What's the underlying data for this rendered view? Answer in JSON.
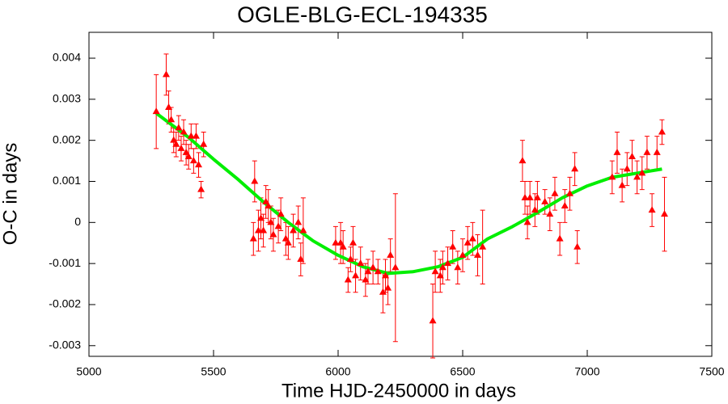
{
  "chart_data": {
    "type": "scatter",
    "title": "OGLE-BLG-ECL-194335",
    "x_label": "Time HJD-2450000 in days",
    "y_label": "O-C in days",
    "xlim": [
      5000,
      7500
    ],
    "xticks": [
      5000,
      5500,
      6000,
      6500,
      7000,
      7500
    ],
    "ylim": [
      -0.00326,
      0.00463
    ],
    "yticks": [
      -0.003,
      -0.002,
      -0.001,
      0,
      0.001,
      0.002,
      0.003,
      0.004
    ],
    "grid": false,
    "color": "#ff0000",
    "x": [
      5270,
      5310,
      5320,
      5330,
      5340,
      5350,
      5360,
      5370,
      5380,
      5390,
      5400,
      5410,
      5420,
      5430,
      5440,
      5450,
      5460,
      5660,
      5665,
      5680,
      5690,
      5700,
      5710,
      5720,
      5730,
      5740,
      5760,
      5770,
      5790,
      5800,
      5820,
      5840,
      5850,
      5860,
      5990,
      6010,
      6020,
      6040,
      6050,
      6060,
      6070,
      6090,
      6110,
      6120,
      6140,
      6160,
      6180,
      6190,
      6200,
      6210,
      6230,
      6380,
      6390,
      6410,
      6420,
      6440,
      6460,
      6480,
      6500,
      6520,
      6540,
      6560,
      6580,
      6740,
      6750,
      6760,
      6770,
      6790,
      6800,
      6830,
      6850,
      6870,
      6890,
      6910,
      6930,
      6950,
      6960,
      7100,
      7120,
      7140,
      7160,
      7180,
      7200,
      7220,
      7240,
      7260,
      7280,
      7300,
      7310
    ],
    "values": [
      0.0027,
      0.0036,
      0.0028,
      0.0025,
      0.002,
      0.0019,
      0.0023,
      0.0018,
      0.0022,
      0.0017,
      0.0016,
      0.0021,
      0.0015,
      0.0021,
      0.0014,
      0.0008,
      0.0019,
      -0.0004,
      0.001,
      -0.0002,
      0.0001,
      -0.0002,
      0.0005,
      0.0004,
      0,
      -0.0003,
      -0.0001,
      0.0002,
      -0.0004,
      -0.0005,
      -0.0002,
      0,
      -0.0009,
      -0.0002,
      -0.0005,
      -0.0005,
      -0.0006,
      -0.0014,
      -0.0009,
      -0.0005,
      -0.0013,
      -0.001,
      -0.0014,
      -0.0012,
      -0.0011,
      -0.0012,
      -0.0017,
      -0.0013,
      -0.0016,
      -0.0008,
      -0.0011,
      -0.0024,
      -0.0012,
      -0.0013,
      -0.0011,
      -0.001,
      -0.0006,
      -0.0011,
      -0.0008,
      -0.0005,
      -0.0004,
      -0.0008,
      -0.0006,
      0.0015,
      0.0006,
      0,
      0.0006,
      0.0003,
      0.0006,
      0.0005,
      0.0002,
      0.0007,
      -0.0004,
      0.0004,
      0.0007,
      0.0013,
      -0.0006,
      0.0011,
      0.0017,
      0.0009,
      0.0013,
      0.0016,
      0.0011,
      0.0012,
      0.0017,
      0.0003,
      0.0017,
      0.0022,
      0.0002
    ],
    "errors": [
      0.0009,
      0.0005,
      0.0004,
      0.0003,
      0.0003,
      0.0003,
      0.0003,
      0.0003,
      0.0003,
      0.0003,
      0.0003,
      0.0003,
      0.0003,
      0.0003,
      0.0003,
      0.0002,
      0.0003,
      0.0004,
      0.0005,
      0.0005,
      0.0005,
      0.0004,
      0.0004,
      0.0004,
      0.0004,
      0.0004,
      0.0004,
      0.0004,
      0.0004,
      0.0004,
      0.0004,
      0.0004,
      0.0004,
      0.0008,
      0.0004,
      0.0005,
      0.0004,
      0.0003,
      0.0003,
      0.0004,
      0.0004,
      0.0004,
      0.0004,
      0.0003,
      0.0004,
      0.0003,
      0.0005,
      0.0004,
      0.0004,
      0.0004,
      0.0018,
      0.0009,
      0.0005,
      0.0004,
      0.0004,
      0.0004,
      0.0004,
      0.0004,
      0.0004,
      0.0004,
      0.0004,
      0.0005,
      0.0009,
      0.0005,
      0.0004,
      0.0004,
      0.0004,
      0.0004,
      0.0004,
      0.0003,
      0.0004,
      0.0004,
      0.0004,
      0.0004,
      0.0004,
      0.0004,
      0.0004,
      0.0004,
      0.0005,
      0.0004,
      0.0004,
      0.0004,
      0.0004,
      0.0004,
      0.0004,
      0.0004,
      0.0004,
      0.0003,
      0.0009
    ],
    "fit": {
      "color": "#00ee00",
      "x": [
        5270,
        5400,
        5500,
        5600,
        5700,
        5800,
        5900,
        6000,
        6100,
        6200,
        6300,
        6400,
        6500,
        6600,
        6700,
        6800,
        6900,
        7000,
        7100,
        7200,
        7300
      ],
      "values": [
        0.00266,
        0.00207,
        0.00154,
        0.00104,
        0.0005,
        0,
        -0.00045,
        -0.0008,
        -0.00108,
        -0.00124,
        -0.0012,
        -0.00108,
        -0.00085,
        -0.0004,
        -0.0001,
        0.00024,
        0.0006,
        0.00089,
        0.0011,
        0.0012,
        0.0013
      ]
    }
  }
}
